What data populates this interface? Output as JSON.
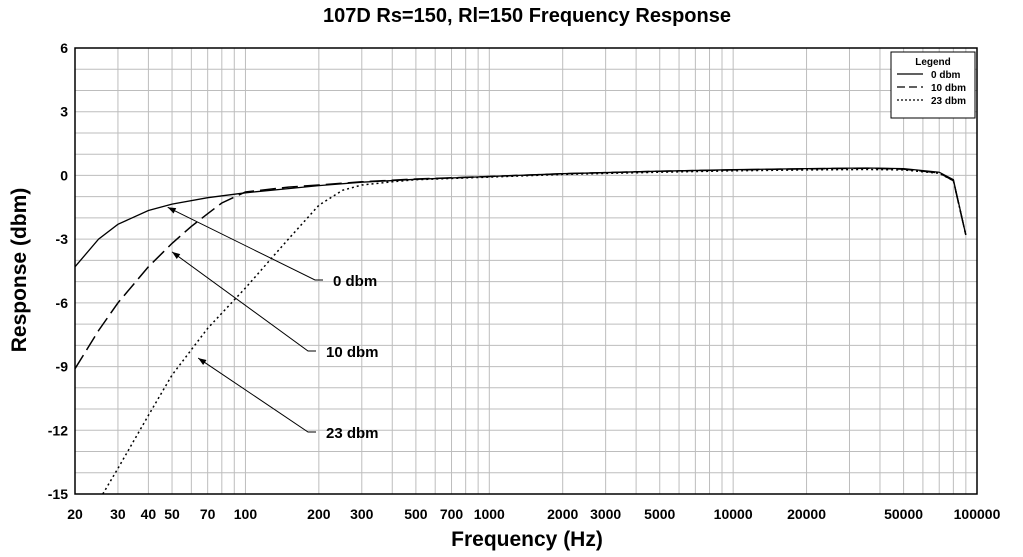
{
  "chart_data": {
    "type": "line",
    "title": "107D Rs=150, Rl=150 Frequency Response",
    "xlabel": "Frequency (Hz)",
    "ylabel": "Response (dbm)",
    "xscale": "log",
    "xlim": [
      20,
      100000
    ],
    "ylim": [
      -15,
      6
    ],
    "yticks": [
      "6",
      "3",
      "0",
      "-3",
      "-6",
      "-9",
      "-12",
      "-15"
    ],
    "xticks": [
      "20",
      "30",
      "40",
      "50",
      "70",
      "100",
      "200",
      "300",
      "500",
      "700",
      "1000",
      "2000",
      "3000",
      "5000",
      "10000",
      "20000",
      "50000",
      "100000"
    ],
    "grid": true,
    "legend": {
      "title": "Legend",
      "position": "top-right",
      "entries": [
        "0 dbm",
        "10 dbm",
        "23 dbm"
      ]
    },
    "series": [
      {
        "name": "0 dbm",
        "style": "solid",
        "x": [
          20,
          25,
          30,
          40,
          50,
          70,
          100,
          150,
          200,
          300,
          500,
          1000,
          2000,
          5000,
          10000,
          20000,
          35000,
          50000,
          70000,
          80000,
          90000
        ],
        "y": [
          -4.3,
          -3.0,
          -2.3,
          -1.65,
          -1.35,
          -1.05,
          -0.82,
          -0.62,
          -0.48,
          -0.32,
          -0.18,
          -0.05,
          0.08,
          0.2,
          0.27,
          0.32,
          0.35,
          0.32,
          0.15,
          -0.2,
          -2.8
        ]
      },
      {
        "name": "10 dbm",
        "style": "dashed",
        "x": [
          20,
          25,
          30,
          40,
          50,
          60,
          70,
          80,
          100,
          150,
          200,
          300,
          500,
          1000,
          2000,
          5000,
          10000,
          20000,
          35000,
          50000,
          70000,
          80000,
          90000
        ],
        "y": [
          -9.1,
          -7.3,
          -6.0,
          -4.3,
          -3.2,
          -2.4,
          -1.8,
          -1.3,
          -0.78,
          -0.55,
          -0.45,
          -0.3,
          -0.17,
          -0.05,
          0.08,
          0.2,
          0.26,
          0.31,
          0.34,
          0.3,
          0.12,
          -0.25,
          -2.8
        ]
      },
      {
        "name": "23 dbm",
        "style": "dotted",
        "x": [
          26,
          30,
          40,
          50,
          70,
          100,
          150,
          200,
          250,
          300,
          400,
          500,
          1000,
          2000,
          5000,
          10000,
          20000,
          35000,
          50000,
          70000,
          80000,
          90000
        ],
        "y": [
          -15.0,
          -13.8,
          -11.3,
          -9.4,
          -7.2,
          -5.3,
          -3.0,
          -1.4,
          -0.7,
          -0.45,
          -0.3,
          -0.2,
          -0.08,
          0.05,
          0.15,
          0.22,
          0.26,
          0.28,
          0.26,
          0.1,
          -0.25,
          -2.8
        ]
      }
    ],
    "annotations": [
      {
        "text": "0 dbm",
        "target_x": 48,
        "target_y": -1.5
      },
      {
        "text": "10 dbm",
        "target_x": 50,
        "target_y": -3.6
      },
      {
        "text": "23 dbm",
        "target_x": 64,
        "target_y": -8.6
      }
    ]
  }
}
